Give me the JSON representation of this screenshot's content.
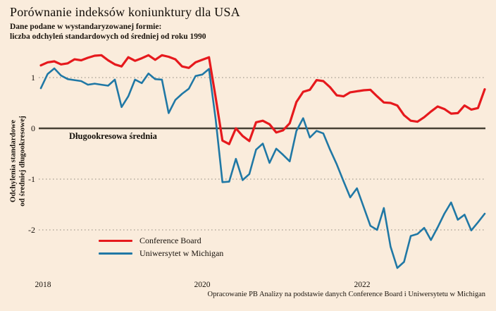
{
  "header": {
    "title": "Porównanie indeksów koniunktury dla USA",
    "subtitle_line1": "Dane podane w wystandaryzowanej formie:",
    "subtitle_line2": "liczba odchyleń standardowych od średniej od roku 1990"
  },
  "chart_data": {
    "type": "line",
    "title": "Porównanie indeksów koniunktury dla USA",
    "x_unit": "month",
    "x_start": "2018-01",
    "x_end": "2023-07",
    "x_tick_labels": [
      "2018",
      "2020",
      "2022"
    ],
    "y_tick_labels": [
      "1",
      "0",
      "-1",
      "-2"
    ],
    "y_ticks": [
      1,
      0,
      -1,
      -2
    ],
    "ylim": [
      -2.95,
      1.62
    ],
    "grid": "dotted horizontal lines at 1, -1, -2; solid dark line at 0",
    "legend_position": "bottom-left inside plot",
    "ylabel_line1": "Odchylenia standardowe",
    "ylabel_line2": "od średniej długookresowej",
    "zero_line_label": "Długookresowa średnia",
    "series": [
      {
        "name": "Conference Board",
        "color": "#e6191d",
        "values": [
          1.24,
          1.3,
          1.32,
          1.26,
          1.28,
          1.36,
          1.34,
          1.39,
          1.43,
          1.44,
          1.34,
          1.26,
          1.22,
          1.4,
          1.33,
          1.38,
          1.44,
          1.35,
          1.44,
          1.41,
          1.36,
          1.22,
          1.19,
          1.3,
          1.35,
          1.4,
          0.6,
          -0.24,
          -0.31,
          0.0,
          -0.15,
          -0.25,
          0.12,
          0.15,
          0.08,
          -0.08,
          -0.04,
          0.1,
          0.52,
          0.72,
          0.76,
          0.95,
          0.93,
          0.81,
          0.65,
          0.63,
          0.71,
          0.73,
          0.75,
          0.76,
          0.63,
          0.51,
          0.5,
          0.45,
          0.26,
          0.15,
          0.13,
          0.22,
          0.33,
          0.43,
          0.38,
          0.29,
          0.3,
          0.45,
          0.37,
          0.4,
          0.77
        ]
      },
      {
        "name": "Uniwersytet w Michigan",
        "color": "#2078a5",
        "values": [
          0.79,
          1.07,
          1.18,
          1.04,
          0.97,
          0.95,
          0.93,
          0.86,
          0.88,
          0.86,
          0.84,
          0.96,
          0.42,
          0.63,
          0.96,
          0.89,
          1.08,
          0.97,
          0.96,
          0.3,
          0.56,
          0.68,
          0.78,
          1.03,
          1.06,
          1.17,
          0.17,
          -1.06,
          -1.05,
          -0.6,
          -1.02,
          -0.9,
          -0.42,
          -0.3,
          -0.68,
          -0.4,
          -0.52,
          -0.65,
          -0.05,
          0.2,
          -0.18,
          -0.05,
          -0.1,
          -0.42,
          -0.71,
          -1.04,
          -1.36,
          -1.18,
          -1.55,
          -1.92,
          -2.0,
          -1.57,
          -2.33,
          -2.75,
          -2.63,
          -2.12,
          -2.08,
          -1.96,
          -2.2,
          -1.95,
          -1.68,
          -1.46,
          -1.8,
          -1.7,
          -2.01,
          -1.85,
          -1.68
        ]
      }
    ]
  },
  "footer": {
    "source": "Opracowanie PB Analizy na podstawie danych Conference Board i Uniwersytetu w Michigan"
  },
  "colors": {
    "background": "#faecdc",
    "conference_board": "#e6191d",
    "michigan": "#2078a5",
    "zero_line": "#474034",
    "gridline": "#8f887c",
    "text": "#17110b"
  }
}
